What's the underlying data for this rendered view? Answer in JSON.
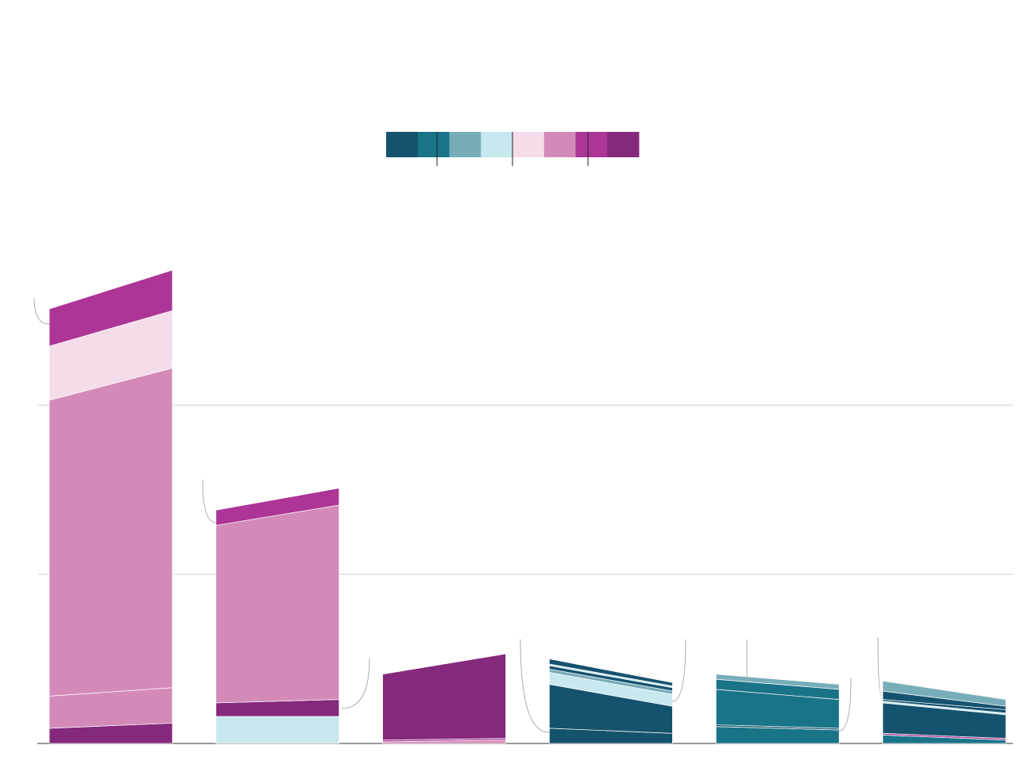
{
  "chart_data": {
    "type": "slope_stack",
    "ylim": [
      0,
      2.8
    ],
    "yticks": [
      0,
      1,
      2
    ],
    "grid": true,
    "legend_colors": [
      "#15526e",
      "#197488",
      "#77adb9",
      "#c7e8ee",
      "#f4dcea",
      "#d48ab9",
      "#ac3596",
      "#85297d"
    ],
    "groups": [
      {
        "segments": [
          {
            "color": "#85297d",
            "values": [
              0.09,
              0.12
            ]
          },
          {
            "color": "#d48ab9",
            "values": [
              0.19,
              0.21
            ]
          },
          {
            "color": "#d48ab9",
            "values": [
              1.75,
              1.89
            ]
          },
          {
            "color": "#f4dcea",
            "values": [
              0.32,
              0.34
            ]
          },
          {
            "color": "#ac3596",
            "values": [
              0.22,
              0.24
            ]
          }
        ]
      },
      {
        "segments": [
          {
            "color": "#c7e8ee",
            "values": [
              0.16,
              0.16
            ]
          },
          {
            "color": "#85297d",
            "values": [
              0.08,
              0.1
            ]
          },
          {
            "color": "#d48ab9",
            "values": [
              1.05,
              1.15
            ]
          },
          {
            "color": "#ac3596",
            "values": [
              0.09,
              0.1
            ]
          }
        ]
      },
      {
        "segments": [
          {
            "color": "#d48ab9",
            "values": [
              0.01,
              0.02
            ]
          },
          {
            "color": "#ac3596",
            "values": [
              0.01,
              0.01
            ]
          },
          {
            "color": "#85297d",
            "values": [
              0.39,
              0.5
            ]
          }
        ]
      },
      {
        "segments": [
          {
            "color": "#15526e",
            "values": [
              0.09,
              0.06
            ]
          },
          {
            "color": "#15526e",
            "values": [
              0.26,
              0.16
            ]
          },
          {
            "color": "#c7e8ee",
            "values": [
              0.07,
              0.07
            ]
          },
          {
            "color": "#77adb9",
            "values": [
              0.02,
              0.02
            ]
          },
          {
            "color": "#15526e",
            "values": [
              0.02,
              0.02
            ]
          },
          {
            "color": "#c7e8ee",
            "values": [
              0.01,
              0.01
            ]
          },
          {
            "color": "#15526e",
            "values": [
              0.03,
              0.02
            ]
          }
        ]
      },
      {
        "segments": [
          {
            "color": "#197488",
            "values": [
              0.1,
              0.08
            ]
          },
          {
            "color": "#15526e",
            "values": [
              0.01,
              0.01
            ]
          },
          {
            "color": "#197488",
            "values": [
              0.21,
              0.17
            ]
          },
          {
            "color": "#197488",
            "values": [
              0.06,
              0.06
            ]
          },
          {
            "color": "#77adb9",
            "values": [
              0.03,
              0.03
            ]
          }
        ]
      },
      {
        "segments": [
          {
            "color": "#197488",
            "values": [
              0.05,
              0.02
            ]
          },
          {
            "color": "#ac3596",
            "values": [
              0.01,
              0.01
            ]
          },
          {
            "color": "#15526e",
            "values": [
              0.18,
              0.14
            ]
          },
          {
            "color": "#c7e8ee",
            "values": [
              0.01,
              0.01
            ]
          },
          {
            "color": "#15526e",
            "values": [
              0.01,
              0.02
            ]
          },
          {
            "color": "#15526e",
            "values": [
              0.05,
              0.02
            ]
          },
          {
            "color": "#77adb9",
            "values": [
              0.06,
              0.04
            ]
          }
        ]
      }
    ]
  }
}
